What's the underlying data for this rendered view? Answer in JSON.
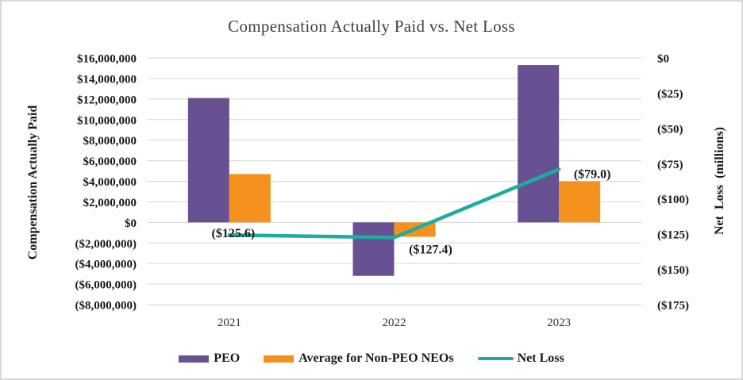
{
  "chart_data": {
    "type": "combo-bar-line",
    "title": "Compensation Actually Paid vs. Net Loss",
    "categories": [
      "2021",
      "2022",
      "2023"
    ],
    "grid": true,
    "legend_position": "bottom",
    "gridline_color": "#D6D6D6",
    "left_axis": {
      "title": "Compensation Actually Paid",
      "min": -8000000,
      "max": 16000000,
      "step": 2000000,
      "ticks": [
        "$16,000,000",
        "$14,000,000",
        "$12,000,000",
        "$10,000,000",
        "$8,000,000",
        "$6,000,000",
        "$4,000,000",
        "$2,000,000",
        "$0",
        "($2,000,000)",
        "($4,000,000)",
        "($6,000,000)",
        "($8,000,000)"
      ]
    },
    "right_axis": {
      "title": "Net Loss (millions)",
      "min": -175,
      "max": 0,
      "step": 25,
      "ticks": [
        "$0",
        "($25)",
        "($50)",
        "($75)",
        "($100)",
        "($125)",
        "($150)",
        "($175)"
      ]
    },
    "series": [
      {
        "name": "PEO",
        "type": "bar",
        "axis": "left",
        "color": "#675193",
        "values": [
          12100000,
          -5200000,
          15300000
        ]
      },
      {
        "name": "Average for Non-PEO NEOs",
        "type": "bar",
        "axis": "left",
        "color": "#F5921E",
        "values": [
          4700000,
          -1400000,
          4000000
        ]
      },
      {
        "name": "Net Loss",
        "type": "line",
        "axis": "right",
        "color": "#1CADA0",
        "values": [
          -125.6,
          -127.4,
          -79.0
        ],
        "point_labels": [
          "($125.6)",
          "($127.4)",
          "($79.0)"
        ]
      }
    ]
  }
}
